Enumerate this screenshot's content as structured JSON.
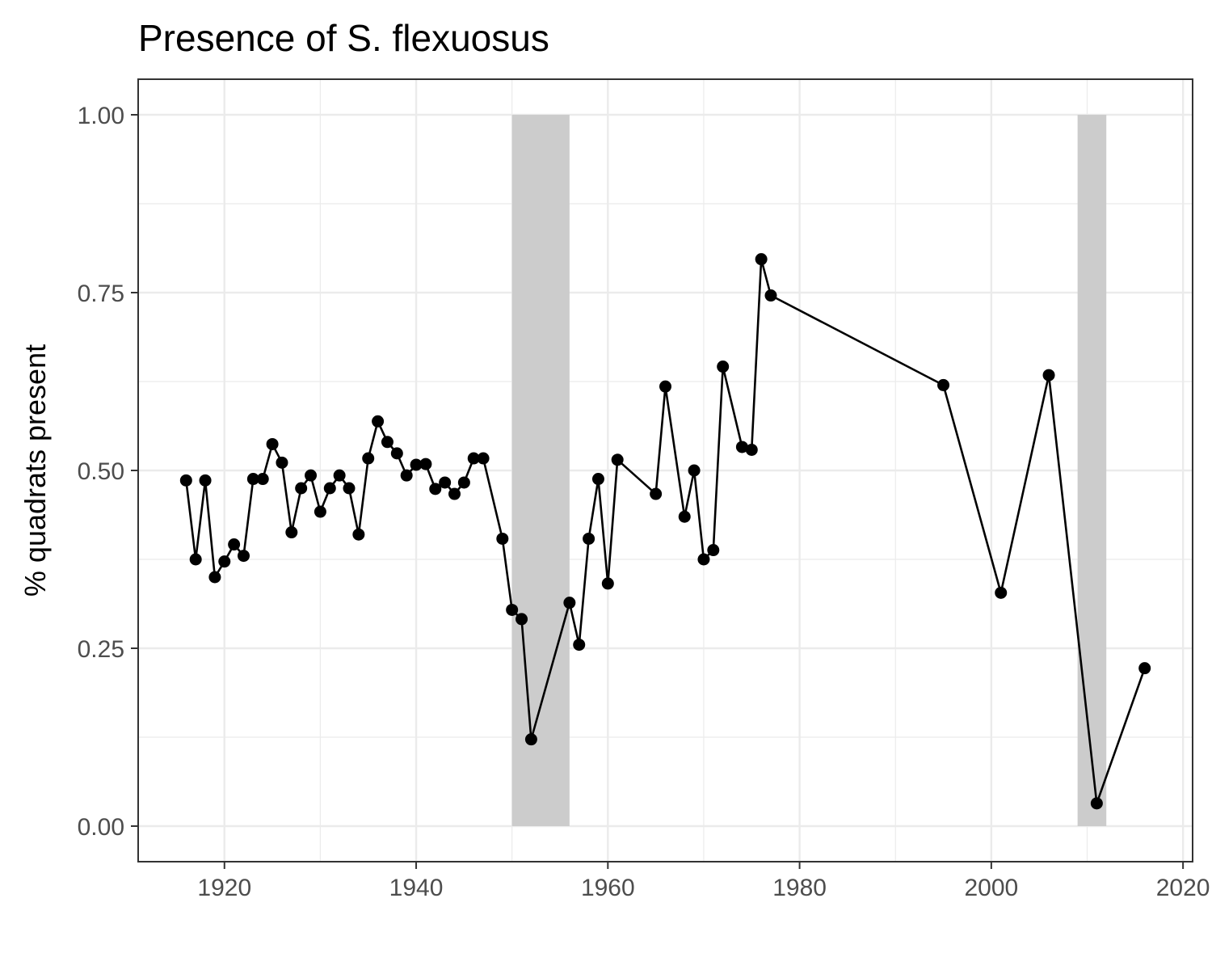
{
  "chart_data": {
    "type": "line",
    "title": "Presence of S. flexuosus",
    "xlabel": "",
    "ylabel": "% quadrats present",
    "xlim": [
      1911.0,
      2021.0
    ],
    "ylim": [
      -0.05,
      1.05
    ],
    "x_ticks": [
      1920,
      1940,
      1960,
      1980,
      2000,
      2020
    ],
    "x_tick_labels": [
      "1920",
      "1940",
      "1960",
      "1980",
      "2000",
      "2020"
    ],
    "y_ticks": [
      0.0,
      0.25,
      0.5,
      0.75,
      1.0
    ],
    "y_tick_labels": [
      "0.00",
      "0.25",
      "0.50",
      "0.75",
      "1.00"
    ],
    "grid": true,
    "legend": "none",
    "shaded_periods": [
      {
        "x_start": 1950.0,
        "x_end": 1956.0,
        "y_start": 0.0,
        "y_end": 1.0
      },
      {
        "x_start": 2009.0,
        "x_end": 2012.0,
        "y_start": 0.0,
        "y_end": 1.0
      }
    ],
    "series": [
      {
        "x": [
          1916,
          1917,
          1918,
          1919,
          1920,
          1921,
          1922,
          1923,
          1924,
          1925,
          1926,
          1927,
          1928,
          1929,
          1930,
          1931,
          1932,
          1933,
          1934,
          1935,
          1936,
          1937,
          1938,
          1939,
          1940,
          1941,
          1942,
          1943,
          1944,
          1945,
          1946,
          1947,
          1949,
          1950,
          1951,
          1952,
          1956,
          1957,
          1958,
          1959,
          1960,
          1961,
          1965,
          1966,
          1968,
          1969,
          1970,
          1971,
          1972,
          1974,
          1975,
          1976,
          1977,
          1995,
          2001,
          2006,
          2011,
          2016
        ],
        "y": [
          0.486,
          0.375,
          0.486,
          0.35,
          0.372,
          0.396,
          0.38,
          0.488,
          0.488,
          0.537,
          0.511,
          0.413,
          0.475,
          0.493,
          0.442,
          0.475,
          0.493,
          0.475,
          0.41,
          0.517,
          0.569,
          0.54,
          0.524,
          0.493,
          0.508,
          0.509,
          0.474,
          0.483,
          0.467,
          0.483,
          0.517,
          0.517,
          0.404,
          0.304,
          0.291,
          0.122,
          0.314,
          0.255,
          0.404,
          0.488,
          0.341,
          0.515,
          0.467,
          0.618,
          0.435,
          0.5,
          0.375,
          0.388,
          0.646,
          0.533,
          0.529,
          0.797,
          0.746,
          0.62,
          0.328,
          0.634,
          0.032,
          0.222
        ]
      }
    ],
    "colors": {
      "line": "#000000",
      "point": "#000000",
      "shade": "#cccccc",
      "grid": "#ebebeb",
      "panel_border": "#333333",
      "tick_label": "#4d4d4d"
    }
  }
}
